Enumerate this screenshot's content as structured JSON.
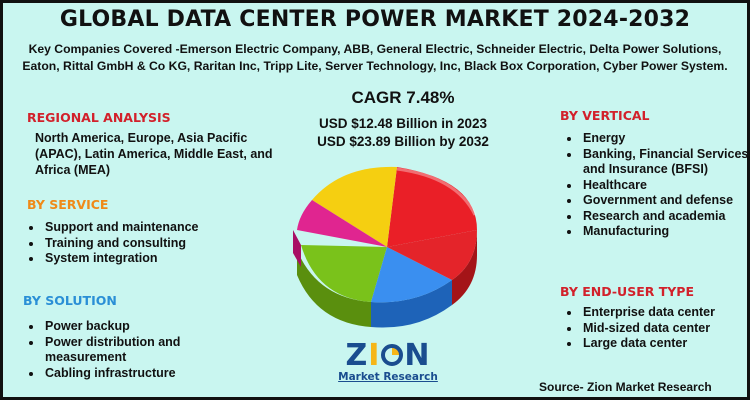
{
  "title": "GLOBAL DATA CENTER POWER MARKET 2024-2032",
  "companies": "Key Companies Covered -Emerson Electric Company, ABB, General Electric, Schneider Electric, Delta Power Solutions, Eaton, Rittal GmbH & Co KG, Raritan Inc, Tripp Lite, Server Technology, Inc, Black Box Corporation, Cyber Power System.",
  "regional": {
    "heading": "REGIONAL ANALYSIS",
    "text": "North America, Europe, Asia Pacific (APAC), Latin America, Middle East, and Africa (MEA)"
  },
  "service": {
    "heading": "BY SERVICE",
    "items": [
      "Support and maintenance",
      "Training and consulting",
      "System integration"
    ]
  },
  "solution": {
    "heading": "BY SOLUTION",
    "items": [
      "Power backup",
      "Power distribution and measurement",
      "Cabling infrastructure"
    ]
  },
  "center": {
    "cagr": "CAGR 7.48%",
    "value_2023": "USD $12.48 Billion in 2023",
    "value_2032": "USD $23.89 Billion by 2032"
  },
  "vertical": {
    "heading": "BY VERTICAL",
    "items": [
      "Energy",
      "Banking, Financial Services, and Insurance (BFSI)",
      "Healthcare",
      "Government and defense",
      "Research and academia",
      "Manufacturing"
    ]
  },
  "end_user": {
    "heading": "BY END-USER TYPE",
    "items": [
      "Enterprise data center",
      "Mid-sized data center",
      "Large data center"
    ]
  },
  "logo": {
    "word": "ZION",
    "sub": "Market Research"
  },
  "source": "Source- Zion Market Research",
  "colors": {
    "background": "#c9f6f0",
    "heading_red": "#d2212b",
    "heading_orange": "#f08a18",
    "heading_blue": "#2a8fd6",
    "logo_blue": "#1a4d8f"
  }
}
